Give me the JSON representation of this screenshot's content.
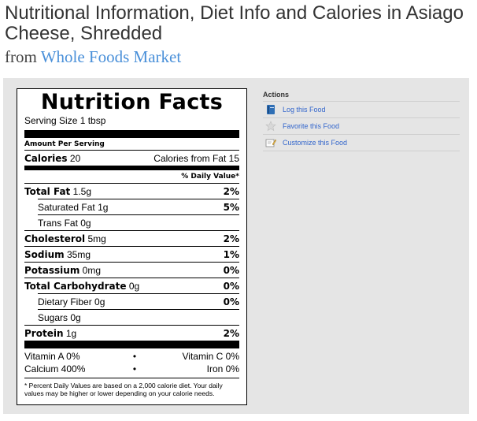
{
  "page": {
    "title": "Nutritional Information, Diet Info and Calories in Asiago Cheese, Shredded",
    "from_prefix": "from",
    "brand": "Whole Foods Market"
  },
  "label": {
    "heading": "Nutrition Facts",
    "serving_size": "Serving Size 1 tbsp",
    "amount_per_serving": "Amount Per Serving",
    "calories_label": "Calories",
    "calories_value": "20",
    "calories_fat": "Calories from Fat 15",
    "dv_header": "% Daily Value*",
    "rows": [
      {
        "name": "Total Fat",
        "amount": "1.5g",
        "pct": "2%"
      },
      {
        "name": "Saturated Fat",
        "amount": "1g",
        "pct": "5%"
      },
      {
        "name": "Trans Fat",
        "amount": "0g",
        "pct": ""
      },
      {
        "name": "Cholesterol",
        "amount": "5mg",
        "pct": "2%"
      },
      {
        "name": "Sodium",
        "amount": "35mg",
        "pct": "1%"
      },
      {
        "name": "Potassium",
        "amount": "0mg",
        "pct": "0%"
      },
      {
        "name": "Total Carbohydrate",
        "amount": "0g",
        "pct": "0%"
      },
      {
        "name": "Dietary Fiber",
        "amount": "0g",
        "pct": "0%"
      },
      {
        "name": "Sugars",
        "amount": "0g",
        "pct": ""
      },
      {
        "name": "Protein",
        "amount": "1g",
        "pct": "2%"
      }
    ],
    "vitamins": [
      {
        "left": "Vitamin A  0%",
        "right": "Vitamin C  0%"
      },
      {
        "left": "Calcium  400%",
        "right": "Iron  0%"
      }
    ],
    "separator": "•",
    "footnote": "* Percent Daily Values are based on a 2,000 calorie diet. Your daily values may be higher or lower depending on your calorie needs."
  },
  "actions": {
    "title": "Actions",
    "items": [
      {
        "label": "Log this Food",
        "icon": "log-book-icon"
      },
      {
        "label": "Favorite this Food",
        "icon": "star-icon"
      },
      {
        "label": "Customize this Food",
        "icon": "edit-pencil-icon"
      }
    ]
  },
  "colors": {
    "link": "#4a90d9",
    "action_link": "#3366cc",
    "panel_bg": "#e5e5e5"
  }
}
